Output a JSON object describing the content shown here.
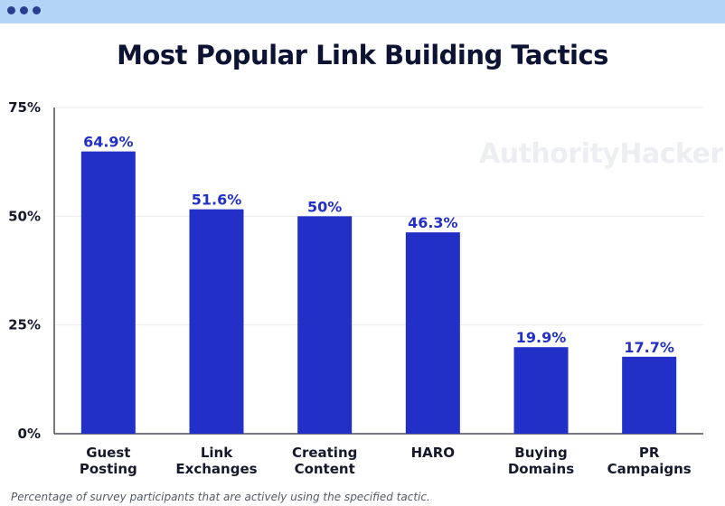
{
  "window": {
    "dots": [
      "window-dot",
      "window-dot",
      "window-dot"
    ]
  },
  "watermark": "AuthorityHacker",
  "footnote": "Percentage of survey participants that are actively using the specified tactic.",
  "colors": {
    "bar": "#2330c8",
    "label": "#2330c8",
    "titlebar": "#b3d4f6"
  },
  "chart_data": {
    "type": "bar",
    "title": "Most Popular Link Building Tactics",
    "xlabel": "",
    "ylabel": "",
    "categories": [
      [
        "Guest",
        "Posting"
      ],
      [
        "Link",
        "Exchanges"
      ],
      [
        "Creating",
        "Content"
      ],
      [
        "HARO"
      ],
      [
        "Buying",
        "Domains"
      ],
      [
        "PR",
        "Campaigns"
      ]
    ],
    "values": [
      64.9,
      51.6,
      50,
      46.3,
      19.9,
      17.7
    ],
    "data_labels": [
      "64.9%",
      "51.6%",
      "50%",
      "46.3%",
      "19.9%",
      "17.7%"
    ],
    "ylim": [
      0,
      75
    ],
    "yticks": [
      0,
      25,
      50,
      75
    ],
    "ytick_labels": [
      "0%",
      "25%",
      "50%",
      "75%"
    ],
    "grid": true,
    "legend": "none"
  }
}
